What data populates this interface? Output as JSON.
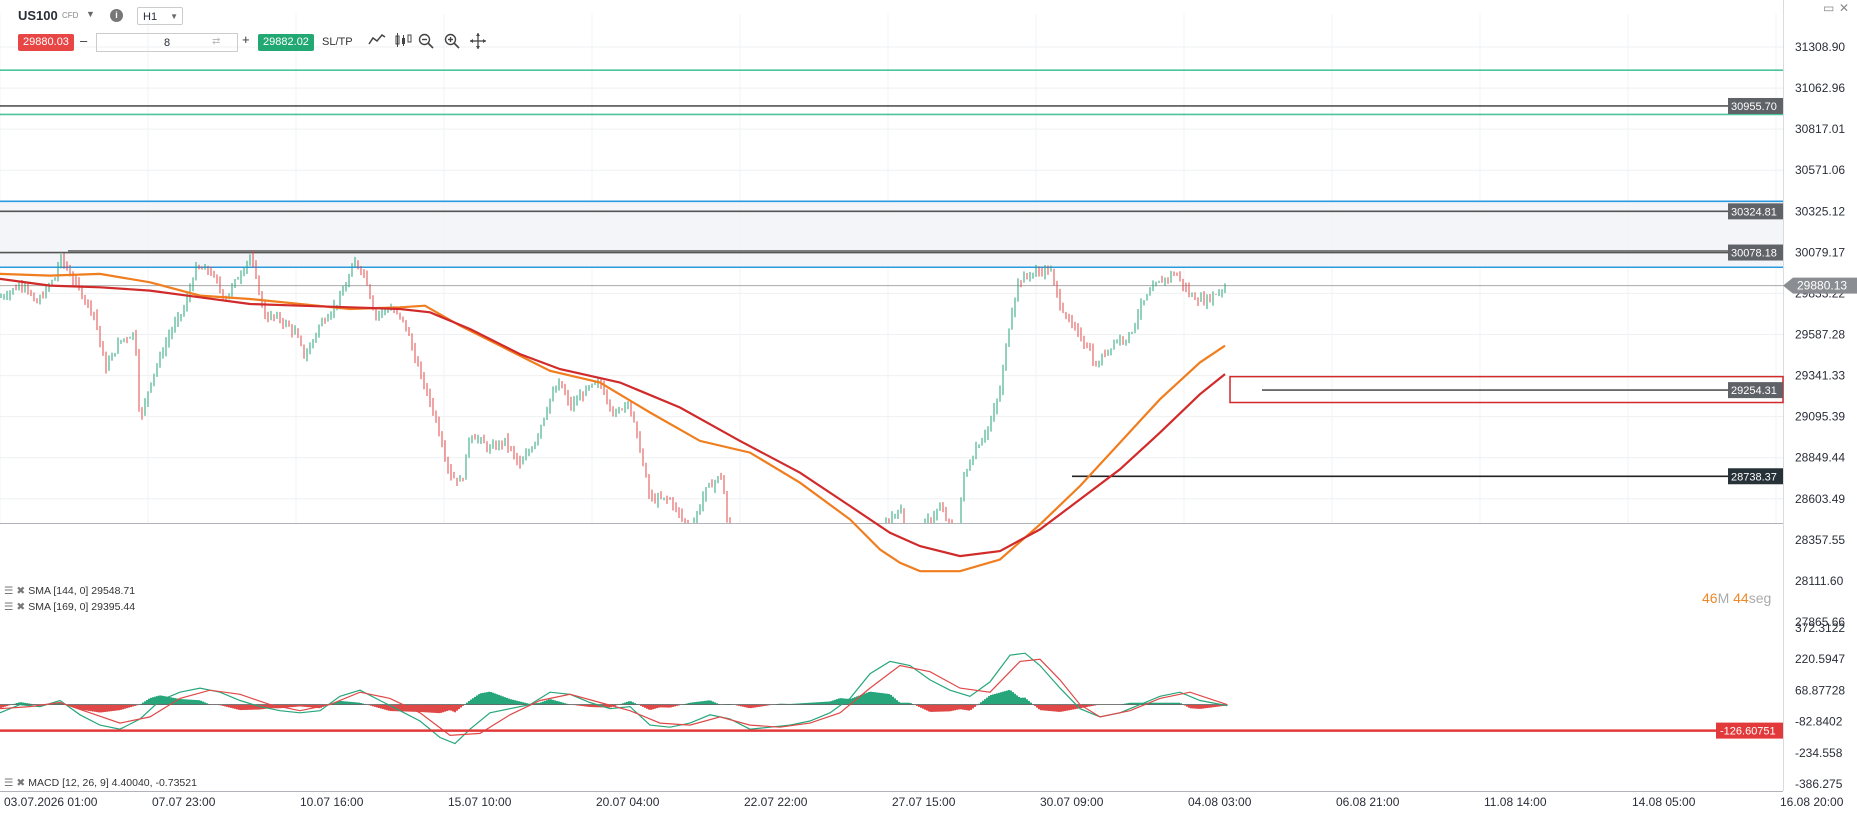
{
  "header": {
    "symbol": "US100",
    "symbol_type": "CFD",
    "timeframe": "H1",
    "sell_price": "29880.03",
    "buy_price": "29882.02",
    "quantity": "8",
    "sltp_label": "SL/TP",
    "minus_label": "–",
    "plus_label": "+"
  },
  "timer": {
    "minutes": "46",
    "m_unit": "M",
    "seconds": "44",
    "s_unit": "seg"
  },
  "indicators": {
    "sma1": "SMA [144, 0] 29548.71",
    "sma2": "SMA [169, 0] 29395.44",
    "macd": "MACD [12, 26, 9] 4.40040, -0.73521"
  },
  "colors": {
    "up": "#26a67a",
    "down": "#e04848",
    "sma144": "#f07d1e",
    "sma169": "#d12a2a",
    "blue_level": "#2a9ae0",
    "teal_level": "#4bc49c",
    "price_tag": "#5f6266",
    "current_tag": "#8a8d91",
    "macd_tag": "#e23a3a"
  },
  "chart_data": {
    "type": "candlestick",
    "symbol": "US100",
    "timeframe": "H1",
    "ylim": [
      27865.66,
      31308.9
    ],
    "price_ticks": [
      31308.9,
      31062.96,
      30817.01,
      30571.06,
      30325.12,
      30079.17,
      29833.22,
      29587.28,
      29341.33,
      29095.39,
      28849.44,
      28603.49,
      28357.55,
      28111.6,
      27865.66
    ],
    "price_tick_labels": [
      "31308.90",
      "31062.96",
      "30817.01",
      "30571.06",
      "30325.12",
      "30079.17",
      "29833.22",
      "29587.28",
      "29341.33",
      "29095.39",
      "28849.44",
      "28603.49",
      "28357.55",
      "28111.60",
      "27865.66"
    ],
    "time_labels": [
      "03.07.2026 01:00",
      "07.07 23:00",
      "10.07 16:00",
      "15.07 10:00",
      "20.07 04:00",
      "22.07 22:00",
      "27.07 15:00",
      "30.07 09:00",
      "04.08 03:00",
      "06.08 21:00",
      "11.08 14:00",
      "14.08 05:00",
      "16.08 20:00"
    ],
    "price_path": [
      [
        0,
        29810
      ],
      [
        25,
        29900
      ],
      [
        35,
        29760
      ],
      [
        55,
        29930
      ],
      [
        60,
        30050
      ],
      [
        75,
        29900
      ],
      [
        95,
        29700
      ],
      [
        105,
        29380
      ],
      [
        120,
        29550
      ],
      [
        135,
        29600
      ],
      [
        140,
        29050
      ],
      [
        150,
        29300
      ],
      [
        170,
        29600
      ],
      [
        185,
        29750
      ],
      [
        195,
        29980
      ],
      [
        210,
        29970
      ],
      [
        225,
        29800
      ],
      [
        240,
        29950
      ],
      [
        250,
        30060
      ],
      [
        265,
        29700
      ],
      [
        280,
        29680
      ],
      [
        295,
        29600
      ],
      [
        305,
        29450
      ],
      [
        320,
        29650
      ],
      [
        340,
        29800
      ],
      [
        355,
        30020
      ],
      [
        365,
        29950
      ],
      [
        375,
        29700
      ],
      [
        390,
        29750
      ],
      [
        405,
        29650
      ],
      [
        420,
        29350
      ],
      [
        435,
        29100
      ],
      [
        450,
        28750
      ],
      [
        462,
        28700
      ],
      [
        470,
        29000
      ],
      [
        490,
        28900
      ],
      [
        505,
        28950
      ],
      [
        520,
        28800
      ],
      [
        535,
        28950
      ],
      [
        550,
        29200
      ],
      [
        560,
        29300
      ],
      [
        570,
        29150
      ],
      [
        585,
        29250
      ],
      [
        600,
        29300
      ],
      [
        615,
        29100
      ],
      [
        628,
        29200
      ],
      [
        640,
        28900
      ],
      [
        650,
        28600
      ],
      [
        670,
        28600
      ],
      [
        690,
        28400
      ],
      [
        705,
        28650
      ],
      [
        722,
        28750
      ],
      [
        728,
        28400
      ],
      [
        738,
        28100
      ],
      [
        755,
        27950
      ],
      [
        765,
        27920
      ],
      [
        780,
        27900
      ],
      [
        795,
        27920
      ],
      [
        810,
        27950
      ],
      [
        825,
        27880
      ],
      [
        835,
        27870
      ],
      [
        845,
        27880
      ],
      [
        868,
        28000
      ],
      [
        885,
        28450
      ],
      [
        900,
        28550
      ],
      [
        915,
        28180
      ],
      [
        925,
        28450
      ],
      [
        940,
        28550
      ],
      [
        958,
        28350
      ],
      [
        962,
        28700
      ],
      [
        975,
        28900
      ],
      [
        990,
        29050
      ],
      [
        1000,
        29250
      ],
      [
        1010,
        29680
      ],
      [
        1018,
        29900
      ],
      [
        1030,
        29950
      ],
      [
        1050,
        29980
      ],
      [
        1058,
        29800
      ],
      [
        1070,
        29650
      ],
      [
        1090,
        29500
      ],
      [
        1095,
        29380
      ],
      [
        1105,
        29480
      ],
      [
        1115,
        29550
      ],
      [
        1130,
        29580
      ],
      [
        1140,
        29750
      ],
      [
        1155,
        29880
      ],
      [
        1175,
        29960
      ],
      [
        1190,
        29820
      ],
      [
        1205,
        29790
      ],
      [
        1220,
        29850
      ],
      [
        1227,
        29880
      ]
    ],
    "sma144_path": [
      [
        0,
        29950
      ],
      [
        50,
        29940
      ],
      [
        100,
        29950
      ],
      [
        150,
        29900
      ],
      [
        200,
        29820
      ],
      [
        250,
        29800
      ],
      [
        300,
        29770
      ],
      [
        350,
        29740
      ],
      [
        400,
        29750
      ],
      [
        425,
        29760
      ],
      [
        460,
        29640
      ],
      [
        500,
        29520
      ],
      [
        550,
        29370
      ],
      [
        600,
        29300
      ],
      [
        650,
        29120
      ],
      [
        700,
        28950
      ],
      [
        750,
        28880
      ],
      [
        800,
        28700
      ],
      [
        850,
        28480
      ],
      [
        880,
        28300
      ],
      [
        900,
        28220
      ],
      [
        920,
        28170
      ],
      [
        960,
        28170
      ],
      [
        1000,
        28240
      ],
      [
        1040,
        28450
      ],
      [
        1080,
        28680
      ],
      [
        1120,
        28940
      ],
      [
        1160,
        29200
      ],
      [
        1200,
        29420
      ],
      [
        1225,
        29520
      ]
    ],
    "sma169_path": [
      [
        0,
        29920
      ],
      [
        50,
        29880
      ],
      [
        100,
        29870
      ],
      [
        150,
        29850
      ],
      [
        200,
        29810
      ],
      [
        250,
        29770
      ],
      [
        300,
        29760
      ],
      [
        350,
        29750
      ],
      [
        400,
        29740
      ],
      [
        430,
        29720
      ],
      [
        470,
        29620
      ],
      [
        520,
        29470
      ],
      [
        560,
        29380
      ],
      [
        620,
        29300
      ],
      [
        680,
        29150
      ],
      [
        740,
        28950
      ],
      [
        800,
        28760
      ],
      [
        850,
        28560
      ],
      [
        890,
        28400
      ],
      [
        920,
        28320
      ],
      [
        960,
        28260
      ],
      [
        1000,
        28290
      ],
      [
        1040,
        28420
      ],
      [
        1080,
        28600
      ],
      [
        1120,
        28780
      ],
      [
        1160,
        29000
      ],
      [
        1200,
        29230
      ],
      [
        1225,
        29350
      ]
    ],
    "macd_ylim": [
      -386.275,
      372.3122
    ],
    "macd_ticks": [
      372.3122,
      220.5947,
      68.87728,
      -82.8402,
      -234.558,
      -386.275
    ],
    "macd_tick_labels": [
      "372.3122",
      "220.5947",
      "68.87728",
      "-82.8402",
      "-234.558",
      "-386.275"
    ],
    "macd_path": [
      [
        0,
        -40
      ],
      [
        20,
        0
      ],
      [
        40,
        -10
      ],
      [
        60,
        20
      ],
      [
        80,
        -50
      ],
      [
        100,
        -100
      ],
      [
        120,
        -120
      ],
      [
        140,
        -70
      ],
      [
        160,
        20
      ],
      [
        180,
        60
      ],
      [
        200,
        80
      ],
      [
        220,
        60
      ],
      [
        240,
        20
      ],
      [
        260,
        -10
      ],
      [
        280,
        -30
      ],
      [
        300,
        -40
      ],
      [
        320,
        -30
      ],
      [
        340,
        40
      ],
      [
        360,
        70
      ],
      [
        380,
        20
      ],
      [
        400,
        -30
      ],
      [
        420,
        -80
      ],
      [
        440,
        -160
      ],
      [
        455,
        -190
      ],
      [
        470,
        -120
      ],
      [
        490,
        -40
      ],
      [
        510,
        -20
      ],
      [
        530,
        0
      ],
      [
        550,
        60
      ],
      [
        570,
        50
      ],
      [
        590,
        10
      ],
      [
        610,
        -20
      ],
      [
        630,
        -10
      ],
      [
        650,
        -100
      ],
      [
        670,
        -110
      ],
      [
        690,
        -90
      ],
      [
        710,
        -50
      ],
      [
        730,
        -70
      ],
      [
        750,
        -120
      ],
      [
        770,
        -110
      ],
      [
        790,
        -100
      ],
      [
        810,
        -80
      ],
      [
        830,
        -40
      ],
      [
        850,
        30
      ],
      [
        870,
        150
      ],
      [
        890,
        210
      ],
      [
        910,
        190
      ],
      [
        930,
        120
      ],
      [
        950,
        70
      ],
      [
        970,
        40
      ],
      [
        990,
        110
      ],
      [
        1010,
        240
      ],
      [
        1025,
        250
      ],
      [
        1040,
        190
      ],
      [
        1060,
        80
      ],
      [
        1080,
        -20
      ],
      [
        1100,
        -60
      ],
      [
        1120,
        -40
      ],
      [
        1140,
        0
      ],
      [
        1160,
        40
      ],
      [
        1180,
        60
      ],
      [
        1200,
        20
      ],
      [
        1227,
        -5
      ]
    ],
    "signal_path": [
      [
        0,
        -20
      ],
      [
        30,
        -10
      ],
      [
        60,
        10
      ],
      [
        90,
        -40
      ],
      [
        120,
        -90
      ],
      [
        150,
        -60
      ],
      [
        180,
        30
      ],
      [
        210,
        70
      ],
      [
        240,
        50
      ],
      [
        270,
        0
      ],
      [
        300,
        -30
      ],
      [
        330,
        0
      ],
      [
        360,
        60
      ],
      [
        390,
        30
      ],
      [
        420,
        -40
      ],
      [
        450,
        -150
      ],
      [
        480,
        -140
      ],
      [
        510,
        -50
      ],
      [
        540,
        20
      ],
      [
        570,
        50
      ],
      [
        600,
        10
      ],
      [
        630,
        -30
      ],
      [
        660,
        -90
      ],
      [
        690,
        -100
      ],
      [
        720,
        -60
      ],
      [
        750,
        -100
      ],
      [
        780,
        -110
      ],
      [
        810,
        -90
      ],
      [
        840,
        -40
      ],
      [
        870,
        80
      ],
      [
        900,
        190
      ],
      [
        930,
        160
      ],
      [
        960,
        80
      ],
      [
        990,
        60
      ],
      [
        1020,
        210
      ],
      [
        1040,
        220
      ],
      [
        1060,
        120
      ],
      [
        1080,
        0
      ],
      [
        1100,
        -60
      ],
      [
        1130,
        -30
      ],
      [
        1160,
        30
      ],
      [
        1190,
        60
      ],
      [
        1227,
        0
      ]
    ],
    "levels": [
      {
        "price": 31170,
        "color": "teal",
        "label": ""
      },
      {
        "price": 30955.7,
        "color": "gray",
        "label": "30955.70"
      },
      {
        "price": 30905,
        "color": "teal",
        "label": ""
      },
      {
        "price": 30385,
        "color": "blue",
        "label": ""
      },
      {
        "price": 30324.81,
        "color": "gray",
        "label": "30324.81"
      },
      {
        "price": 30078.18,
        "color": "gray",
        "label": "30078.18"
      },
      {
        "price": 29990,
        "color": "blue",
        "label": ""
      },
      {
        "price": 29880.13,
        "color": "current",
        "label": "29880.13"
      },
      {
        "price": 29254.31,
        "color": "gray",
        "label": "29254.31"
      },
      {
        "price": 28738.37,
        "color": "dark",
        "label": "28738.37"
      }
    ],
    "macd_level": {
      "value": -126.60751,
      "label": "-126.60751"
    }
  }
}
